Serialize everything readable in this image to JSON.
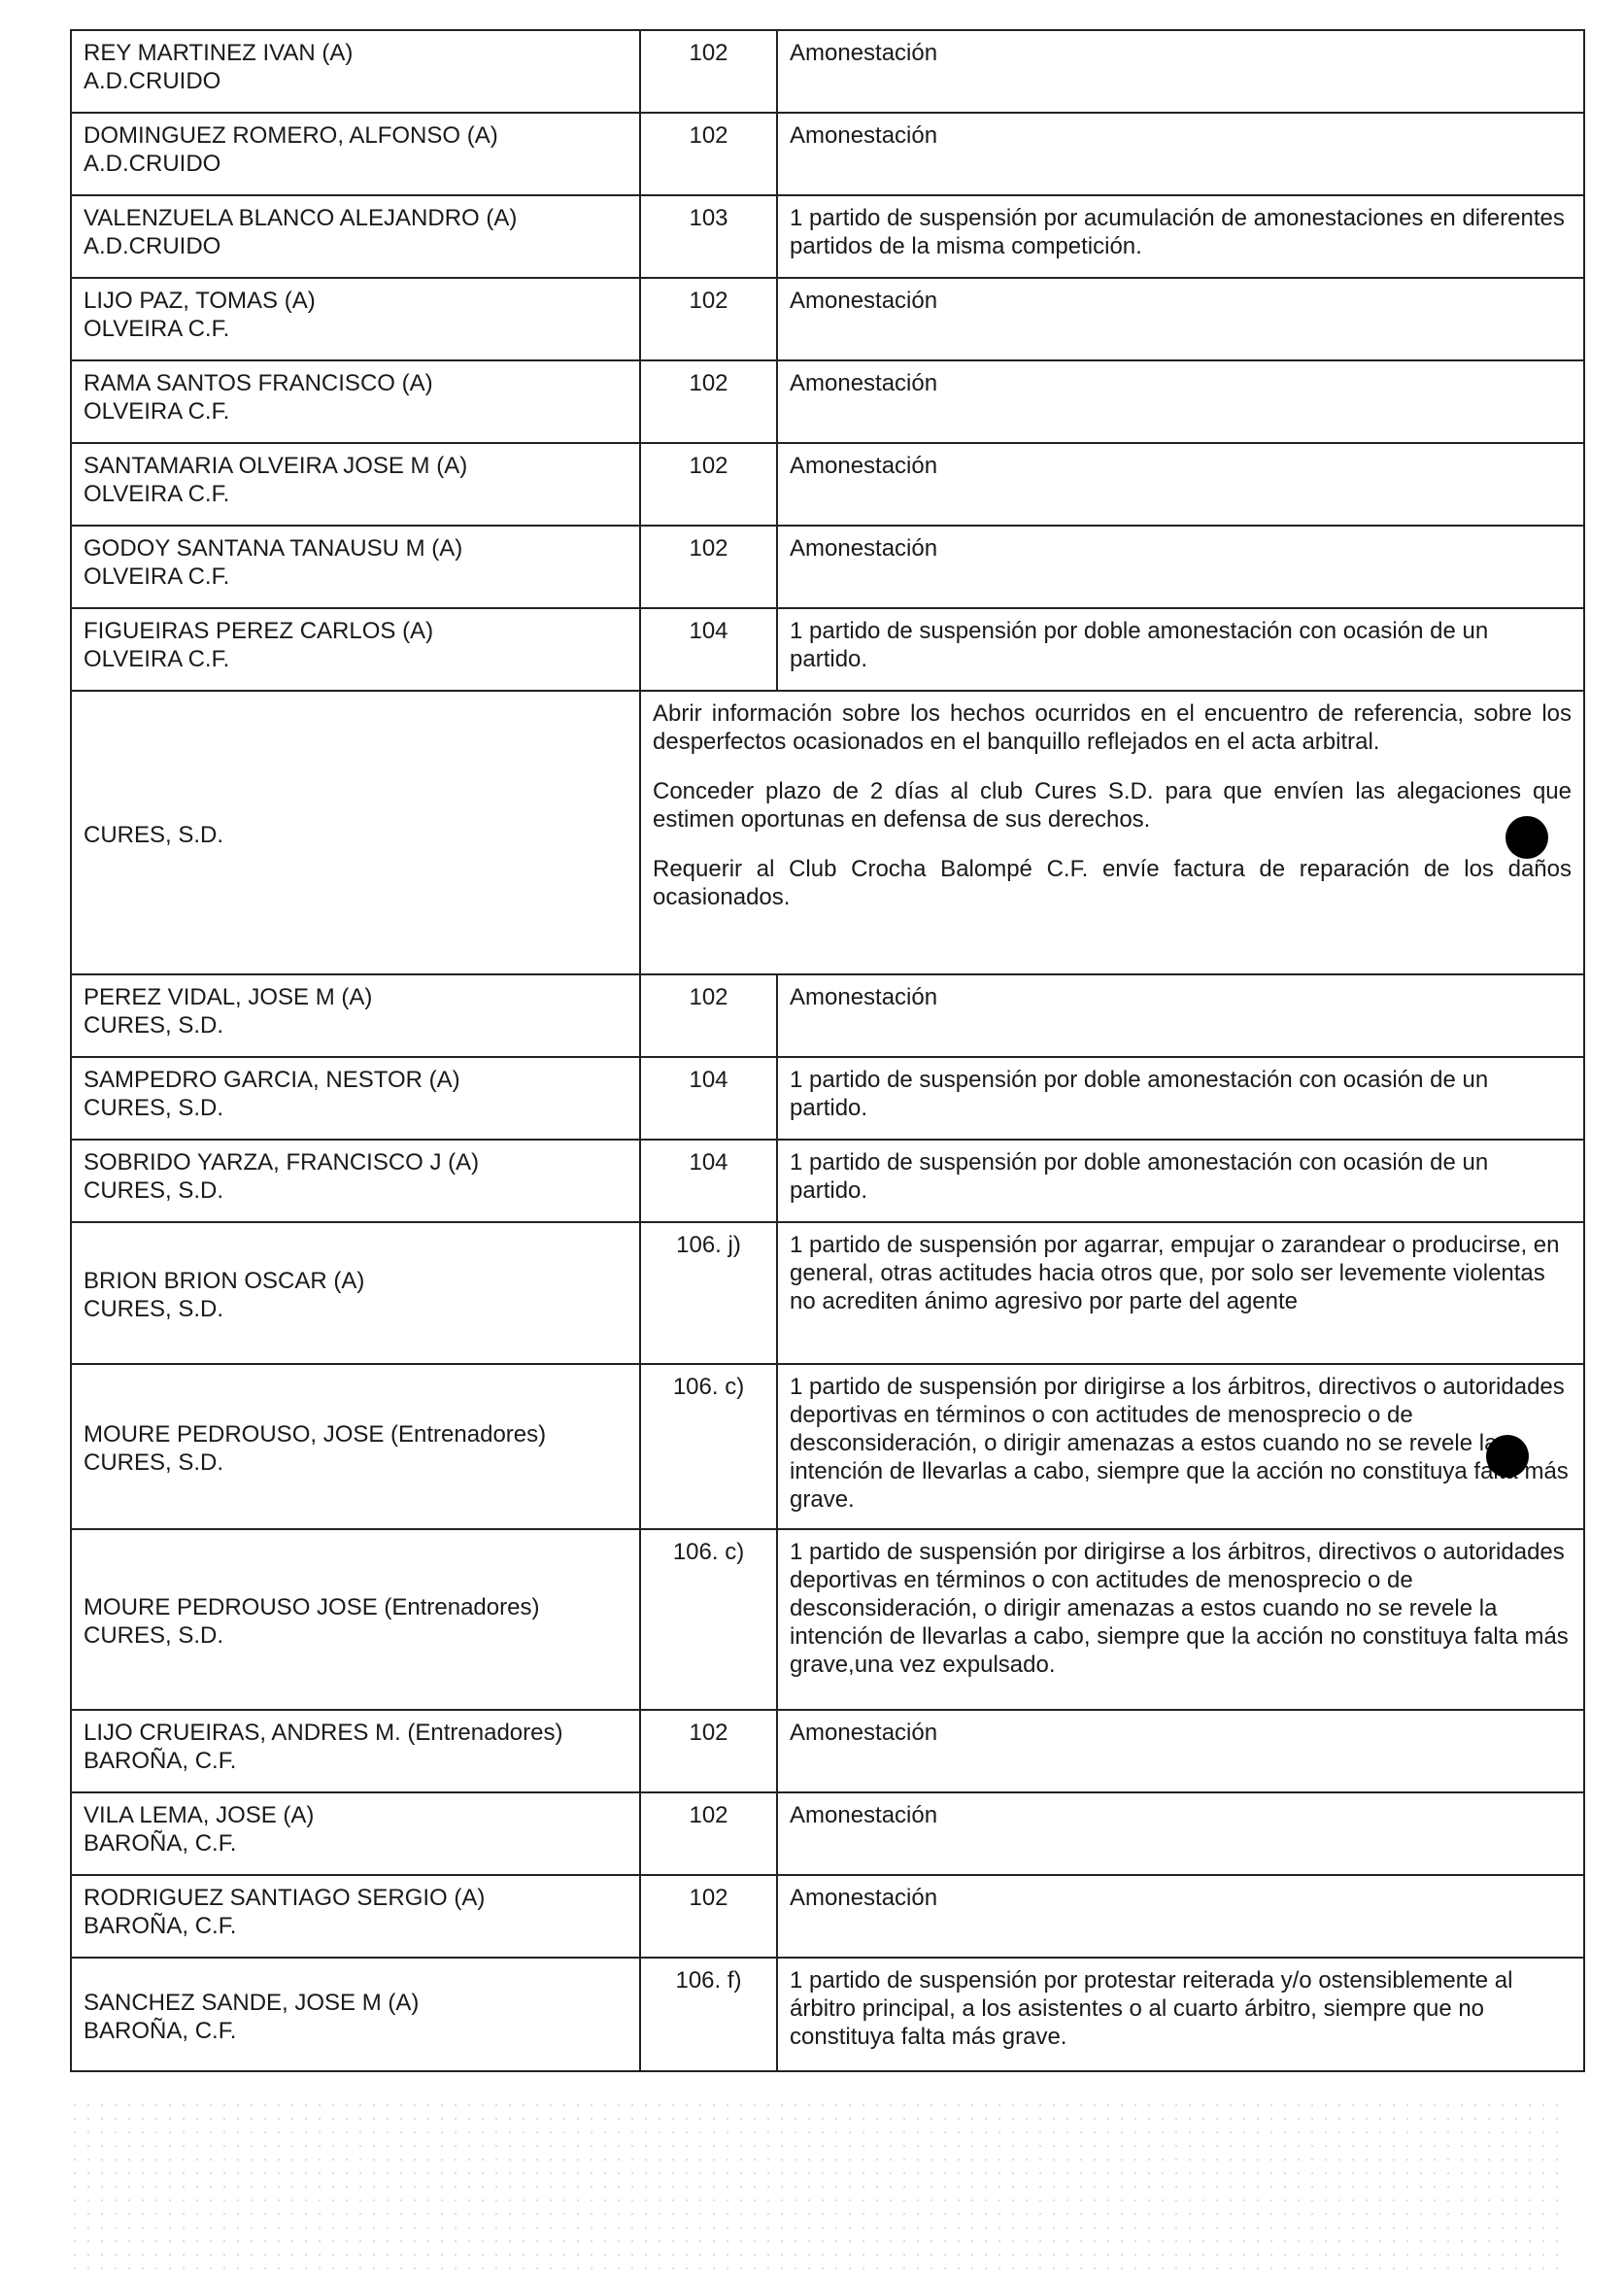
{
  "table": {
    "rows": [
      {
        "name": [
          "REY MARTINEZ IVAN (A)",
          "A.D.CRUIDO"
        ],
        "article": "102",
        "sanction": "Amonestación"
      },
      {
        "name": [
          "DOMINGUEZ ROMERO, ALFONSO (A)",
          "A.D.CRUIDO"
        ],
        "article": "102",
        "sanction": "Amonestación"
      },
      {
        "name": [
          "VALENZUELA BLANCO ALEJANDRO (A)",
          "A.D.CRUIDO"
        ],
        "article": "103",
        "sanction": "1 partido de suspensión por acumulación de amonestaciones en diferentes partidos de la misma competición."
      },
      {
        "name": [
          "LIJO PAZ, TOMAS (A)",
          "OLVEIRA C.F."
        ],
        "article": "102",
        "sanction": "Amonestación"
      },
      {
        "name": [
          "RAMA SANTOS FRANCISCO (A)",
          "OLVEIRA C.F."
        ],
        "article": "102",
        "sanction": "Amonestación"
      },
      {
        "name": [
          "SANTAMARIA OLVEIRA JOSE M (A)",
          "OLVEIRA C.F."
        ],
        "article": "102",
        "sanction": "Amonestación"
      },
      {
        "name": [
          "GODOY SANTANA TANAUSU M (A)",
          "OLVEIRA C.F."
        ],
        "article": "102",
        "sanction": "Amonestación"
      },
      {
        "name": [
          "FIGUEIRAS PEREZ CARLOS (A)",
          "OLVEIRA C.F."
        ],
        "article": "104",
        "sanction": "1 partido de suspensión por doble amonestación con ocasión de un partido."
      },
      {
        "name": [
          "CURES, S.D."
        ],
        "paragraphs": [
          "Abrir información sobre los hechos ocurridos en el encuentro de referencia, sobre los desperfectos ocasionados en el banquillo reflejados en el acta arbitral.",
          "Conceder plazo de 2 días al club Cures S.D. para que envíen las alegaciones que estimen oportunas en defensa de sus derechos.",
          "Requerir al Club Crocha Balompé C.F. envíe factura de reparación de los daños ocasionados."
        ]
      },
      {
        "name": [
          "PEREZ VIDAL, JOSE M (A)",
          "CURES, S.D."
        ],
        "article": "102",
        "sanction": "Amonestación"
      },
      {
        "name": [
          "SAMPEDRO GARCIA, NESTOR (A)",
          "CURES, S.D."
        ],
        "article": "104",
        "sanction": "1 partido de suspensión por doble amonestación con ocasión de un partido."
      },
      {
        "name": [
          "SOBRIDO YARZA, FRANCISCO J (A)",
          "CURES, S.D."
        ],
        "article": "104",
        "sanction": "1 partido de suspensión por doble amonestación con ocasión de un partido."
      },
      {
        "name": [
          "BRION BRION OSCAR (A)",
          "CURES, S.D."
        ],
        "article": "106. j)",
        "sanction": "1 partido de suspensión por agarrar, empujar o zarandear o producirse, en general, otras actitudes hacia otros que, por solo ser levemente violentas no acrediten ánimo agresivo por parte del agente"
      },
      {
        "name": [
          "MOURE PEDROUSO, JOSE (Entrenadores)",
          "CURES, S.D."
        ],
        "article": "106. c)",
        "sanction": "1 partido de suspensión por dirigirse a los árbitros, directivos o autoridades deportivas en términos o con actitudes de menosprecio o de desconsideración, o dirigir amenazas a estos cuando no se revele la intención de llevarlas a cabo, siempre que la acción no constituya falta más grave."
      },
      {
        "name": [
          "MOURE PEDROUSO JOSE (Entrenadores)",
          "CURES, S.D."
        ],
        "article": "106. c)",
        "sanction": "1 partido de suspensión por dirigirse a los árbitros, directivos o autoridades deportivas en términos o con actitudes de menosprecio o de desconsideración, o dirigir amenazas a estos cuando no se revele la intención de llevarlas a cabo, siempre que la acción no constituya falta más grave,una vez expulsado."
      },
      {
        "name": [
          "LIJO CRUEIRAS, ANDRES M. (Entrenadores)",
          "BAROÑA, C.F."
        ],
        "article": "102",
        "sanction": "Amonestación"
      },
      {
        "name": [
          "VILA LEMA, JOSE (A)",
          "BAROÑA, C.F."
        ],
        "article": "102",
        "sanction": "Amonestación"
      },
      {
        "name": [
          "RODRIGUEZ SANTIAGO SERGIO (A)",
          "BAROÑA, C.F."
        ],
        "article": "102",
        "sanction": "Amonestación"
      },
      {
        "name": [
          "SANCHEZ SANDE, JOSE M (A)",
          "BAROÑA, C.F."
        ],
        "article": "106. f)",
        "sanction": "1 partido de suspensión por protestar reiterada y/o ostensiblemente al árbitro principal, a los asistentes o al cuarto árbitro, siempre que no constituya falta más grave."
      }
    ]
  }
}
